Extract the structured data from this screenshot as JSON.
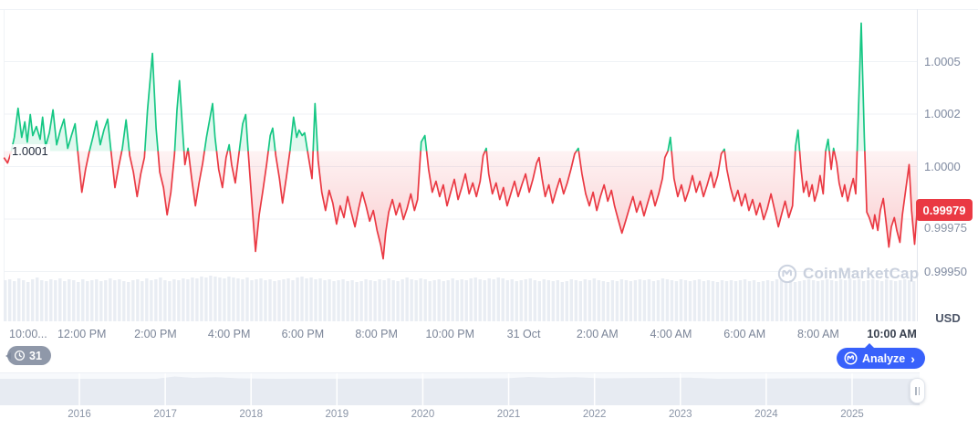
{
  "chart_data": {
    "type": "line",
    "unit": "USD",
    "open_threshold": {
      "price": 1.000074,
      "label": "1.0001"
    },
    "current": {
      "price": 0.99979,
      "label": "0.99979"
    },
    "y_axis": {
      "ticks": [
        {
          "price": 1.0005,
          "label": "1.0005",
          "hidden": false
        },
        {
          "price": 1.00025,
          "label": "1.0002",
          "hidden": false
        },
        {
          "price": 1.0,
          "label": "1.0000",
          "hidden": false
        },
        {
          "price": 0.99975,
          "label": "0.99975",
          "hidden": true
        },
        {
          "price": 0.9995,
          "label": "0.99950",
          "hidden": false
        }
      ],
      "range": [
        0.99945,
        1.00075
      ]
    },
    "x_axis": {
      "ticks": [
        {
          "t": 0,
          "label": "10:00...",
          "current": false
        },
        {
          "t": 120,
          "label": "12:00 PM",
          "current": false
        },
        {
          "t": 240,
          "label": "2:00 PM",
          "current": false
        },
        {
          "t": 360,
          "label": "4:00 PM",
          "current": false
        },
        {
          "t": 480,
          "label": "6:00 PM",
          "current": false
        },
        {
          "t": 600,
          "label": "8:00 PM",
          "current": false
        },
        {
          "t": 720,
          "label": "10:00 PM",
          "current": false
        },
        {
          "t": 840,
          "label": "31 Oct",
          "current": false
        },
        {
          "t": 960,
          "label": "2:00 AM",
          "current": false
        },
        {
          "t": 1080,
          "label": "4:00 AM",
          "current": false
        },
        {
          "t": 1200,
          "label": "6:00 AM",
          "current": false
        },
        {
          "t": 1320,
          "label": "8:00 AM",
          "current": false
        },
        {
          "t": 1440,
          "label": "10:00 AM",
          "current": true
        }
      ]
    },
    "points": [
      [
        -7,
        1.000043
      ],
      [
        -1,
        1.000017
      ],
      [
        4,
        1.000061
      ],
      [
        10,
        1.000139
      ],
      [
        16,
        1.000278
      ],
      [
        22,
        1.000139
      ],
      [
        27,
        1.000213
      ],
      [
        31,
        1.000117
      ],
      [
        36,
        1.000248
      ],
      [
        40,
        1.000148
      ],
      [
        46,
        1.000191
      ],
      [
        52,
        1.00013
      ],
      [
        56,
        1.000235
      ],
      [
        61,
        1.000096
      ],
      [
        67,
        1.000161
      ],
      [
        73,
        1.00027
      ],
      [
        79,
        1.000104
      ],
      [
        85,
        1.000174
      ],
      [
        91,
        1.000226
      ],
      [
        97,
        1.000087
      ],
      [
        103,
        1.000148
      ],
      [
        109,
        1.000204
      ],
      [
        114,
        1.000052
      ],
      [
        120,
        0.999878
      ],
      [
        126,
        0.999987
      ],
      [
        132,
        1.00007
      ],
      [
        138,
        1.000139
      ],
      [
        144,
        1.000217
      ],
      [
        150,
        1.000104
      ],
      [
        156,
        1.000174
      ],
      [
        162,
        1.000226
      ],
      [
        168,
        1.000061
      ],
      [
        174,
        0.9999
      ],
      [
        180,
        1.0
      ],
      [
        186,
        1.000087
      ],
      [
        192,
        1.000222
      ],
      [
        198,
        1.000052
      ],
      [
        204,
        0.999974
      ],
      [
        210,
        0.999857
      ],
      [
        216,
        0.999965
      ],
      [
        222,
        1.000043
      ],
      [
        227,
        1.00027
      ],
      [
        235,
        1.000539
      ],
      [
        241,
        1.000183
      ],
      [
        247,
        0.999974
      ],
      [
        253,
        0.9999
      ],
      [
        259,
        0.99977
      ],
      [
        265,
        0.999878
      ],
      [
        271,
        1.000061
      ],
      [
        275,
        1.00027
      ],
      [
        279,
        1.000409
      ],
      [
        284,
        1.000183
      ],
      [
        288,
        1.000009
      ],
      [
        293,
        1.000087
      ],
      [
        299,
        0.999943
      ],
      [
        305,
        0.999813
      ],
      [
        311,
        0.999922
      ],
      [
        317,
        1.000017
      ],
      [
        323,
        1.000139
      ],
      [
        329,
        1.000235
      ],
      [
        333,
        1.0003
      ],
      [
        337,
        1.000139
      ],
      [
        343,
        0.999987
      ],
      [
        349,
        0.9999
      ],
      [
        355,
        1.000043
      ],
      [
        360,
        1.000104
      ],
      [
        364,
        1.000009
      ],
      [
        370,
        0.999922
      ],
      [
        376,
        1.000061
      ],
      [
        382,
        1.000204
      ],
      [
        387,
        1.000248
      ],
      [
        391,
        1.000074
      ],
      [
        397,
        0.999835
      ],
      [
        403,
        0.999596
      ],
      [
        409,
        0.99977
      ],
      [
        415,
        0.999887
      ],
      [
        421,
        1.000009
      ],
      [
        427,
        1.000148
      ],
      [
        431,
        1.000183
      ],
      [
        436,
        1.000052
      ],
      [
        442,
        0.999943
      ],
      [
        447,
        0.999826
      ],
      [
        453,
        0.999943
      ],
      [
        459,
        1.000074
      ],
      [
        465,
        1.000235
      ],
      [
        470,
        1.000139
      ],
      [
        474,
        1.000174
      ],
      [
        479,
        1.000148
      ],
      [
        483,
        1.000161
      ],
      [
        489,
        1.000052
      ],
      [
        495,
        0.999943
      ],
      [
        500,
        1.0003
      ],
      [
        505,
        1.00003
      ],
      [
        511,
        0.999878
      ],
      [
        517,
        0.999791
      ],
      [
        523,
        0.999887
      ],
      [
        529,
        0.999826
      ],
      [
        535,
        0.999726
      ],
      [
        541,
        0.999813
      ],
      [
        547,
        0.999757
      ],
      [
        553,
        0.999857
      ],
      [
        559,
        0.999783
      ],
      [
        565,
        0.999713
      ],
      [
        571,
        0.9998
      ],
      [
        577,
        0.999878
      ],
      [
        583,
        0.999813
      ],
      [
        589,
        0.99974
      ],
      [
        595,
        0.999791
      ],
      [
        601,
        0.999696
      ],
      [
        607,
        0.999626
      ],
      [
        611,
        0.999561
      ],
      [
        615,
        0.999683
      ],
      [
        620,
        0.999783
      ],
      [
        626,
        0.999843
      ],
      [
        632,
        0.99977
      ],
      [
        638,
        0.999826
      ],
      [
        644,
        0.999748
      ],
      [
        650,
        0.9998
      ],
      [
        656,
        0.99987
      ],
      [
        662,
        0.999791
      ],
      [
        667,
        0.999843
      ],
      [
        673,
        1.000117
      ],
      [
        679,
        1.000148
      ],
      [
        685,
        0.999987
      ],
      [
        691,
        0.999878
      ],
      [
        697,
        0.99993
      ],
      [
        703,
        0.999857
      ],
      [
        709,
        0.999913
      ],
      [
        715,
        0.999813
      ],
      [
        721,
        0.999878
      ],
      [
        727,
        0.999939
      ],
      [
        733,
        0.999843
      ],
      [
        739,
        0.9999
      ],
      [
        745,
        0.999965
      ],
      [
        751,
        0.99987
      ],
      [
        757,
        0.999922
      ],
      [
        763,
        0.999857
      ],
      [
        769,
        0.99993
      ],
      [
        774,
        1.000052
      ],
      [
        779,
        1.000087
      ],
      [
        783,
        0.999965
      ],
      [
        789,
        0.99987
      ],
      [
        795,
        0.999922
      ],
      [
        801,
        0.999843
      ],
      [
        807,
        0.9999
      ],
      [
        813,
        0.999813
      ],
      [
        819,
        0.99987
      ],
      [
        825,
        0.99993
      ],
      [
        831,
        0.999857
      ],
      [
        837,
        0.999913
      ],
      [
        843,
        0.999965
      ],
      [
        849,
        0.999878
      ],
      [
        855,
        0.999939
      ],
      [
        861,
        1.000017
      ],
      [
        865,
        1.000043
      ],
      [
        870,
        0.999943
      ],
      [
        875,
        0.999857
      ],
      [
        881,
        0.999913
      ],
      [
        887,
        0.999826
      ],
      [
        893,
        0.999887
      ],
      [
        899,
        0.999943
      ],
      [
        905,
        0.99987
      ],
      [
        911,
        0.999922
      ],
      [
        917,
        0.999987
      ],
      [
        923,
        1.000061
      ],
      [
        929,
        1.000087
      ],
      [
        935,
        0.999965
      ],
      [
        941,
        0.99987
      ],
      [
        947,
        0.999813
      ],
      [
        953,
        0.999878
      ],
      [
        959,
        0.999791
      ],
      [
        965,
        0.999857
      ],
      [
        971,
        0.999913
      ],
      [
        977,
        0.999835
      ],
      [
        983,
        0.999887
      ],
      [
        988,
        0.999813
      ],
      [
        994,
        0.999748
      ],
      [
        1000,
        0.999683
      ],
      [
        1006,
        0.99974
      ],
      [
        1012,
        0.9998
      ],
      [
        1018,
        0.999857
      ],
      [
        1024,
        0.999783
      ],
      [
        1030,
        0.999835
      ],
      [
        1036,
        0.999765
      ],
      [
        1042,
        0.999826
      ],
      [
        1048,
        0.999887
      ],
      [
        1054,
        0.999813
      ],
      [
        1060,
        0.99987
      ],
      [
        1066,
        0.999943
      ],
      [
        1070,
        1.000043
      ],
      [
        1075,
        1.000074
      ],
      [
        1079,
        1.000139
      ],
      [
        1085,
        0.999943
      ],
      [
        1091,
        0.999857
      ],
      [
        1097,
        0.999913
      ],
      [
        1103,
        0.999835
      ],
      [
        1109,
        0.999887
      ],
      [
        1115,
        0.999957
      ],
      [
        1121,
        0.999878
      ],
      [
        1127,
        0.99993
      ],
      [
        1133,
        0.999857
      ],
      [
        1139,
        0.999913
      ],
      [
        1145,
        0.999974
      ],
      [
        1150,
        0.9999
      ],
      [
        1156,
        0.999957
      ],
      [
        1162,
        1.000061
      ],
      [
        1167,
        1.000083
      ],
      [
        1171,
        0.999987
      ],
      [
        1177,
        0.9999
      ],
      [
        1183,
        0.999835
      ],
      [
        1189,
        0.999887
      ],
      [
        1195,
        0.999813
      ],
      [
        1201,
        0.99987
      ],
      [
        1207,
        0.999791
      ],
      [
        1213,
        0.999843
      ],
      [
        1219,
        0.99977
      ],
      [
        1225,
        0.999826
      ],
      [
        1231,
        0.999748
      ],
      [
        1237,
        0.9998
      ],
      [
        1243,
        0.99987
      ],
      [
        1249,
        0.999791
      ],
      [
        1255,
        0.999713
      ],
      [
        1260,
        0.99977
      ],
      [
        1266,
        0.999835
      ],
      [
        1272,
        0.999757
      ],
      [
        1278,
        0.999813
      ],
      [
        1283,
        1.000096
      ],
      [
        1287,
        1.000174
      ],
      [
        1292,
        0.999987
      ],
      [
        1296,
        0.999878
      ],
      [
        1301,
        0.99993
      ],
      [
        1305,
        0.999857
      ],
      [
        1310,
        0.999913
      ],
      [
        1314,
        0.999835
      ],
      [
        1319,
        0.999887
      ],
      [
        1323,
        0.999957
      ],
      [
        1328,
        0.99987
      ],
      [
        1332,
        1.000074
      ],
      [
        1336,
        1.00013
      ],
      [
        1341,
        0.999987
      ],
      [
        1345,
        1.000087
      ],
      [
        1350,
        1.000017
      ],
      [
        1354,
        0.999922
      ],
      [
        1359,
        0.999857
      ],
      [
        1363,
        0.999913
      ],
      [
        1368,
        0.999835
      ],
      [
        1372,
        0.999887
      ],
      [
        1377,
        0.999943
      ],
      [
        1381,
        0.99987
      ],
      [
        1386,
        1.000313
      ],
      [
        1390,
        1.000683
      ],
      [
        1395,
        1.000139
      ],
      [
        1399,
        0.999783
      ],
      [
        1403,
        0.999757
      ],
      [
        1409,
        0.999704
      ],
      [
        1412,
        0.99977
      ],
      [
        1417,
        0.999696
      ],
      [
        1421,
        0.999791
      ],
      [
        1426,
        0.999848
      ],
      [
        1430,
        0.999748
      ],
      [
        1435,
        0.999617
      ],
      [
        1439,
        0.999713
      ],
      [
        1444,
        0.999757
      ],
      [
        1448,
        0.999696
      ],
      [
        1453,
        0.999639
      ],
      [
        1457,
        0.99977
      ],
      [
        1463,
        0.9999
      ],
      [
        1468,
        1.000009
      ],
      [
        1472,
        0.999791
      ],
      [
        1477,
        0.99963
      ],
      [
        1481,
        0.99979
      ]
    ],
    "volume_bars": [
      45,
      46,
      44,
      47,
      45,
      43,
      46,
      48,
      45,
      44,
      46,
      45,
      47,
      44,
      46,
      45,
      43,
      46,
      44,
      45,
      46,
      44,
      45,
      47,
      45,
      46,
      44,
      43,
      45,
      46,
      44,
      47,
      45,
      46,
      48,
      45,
      44,
      46,
      45,
      47,
      46,
      48,
      47,
      49,
      48,
      50,
      49,
      48,
      47,
      49,
      48,
      47,
      46,
      48,
      45,
      46,
      47,
      45,
      46,
      44,
      45,
      46,
      47,
      45,
      48,
      49,
      47,
      48,
      46,
      47,
      45,
      46,
      44,
      45,
      46,
      44,
      45,
      43,
      44,
      46,
      45,
      44,
      46,
      45,
      47,
      45,
      44,
      46,
      48,
      46,
      45,
      47,
      46,
      44,
      45,
      46,
      44,
      45,
      47,
      45,
      46,
      45,
      47,
      48,
      46,
      45,
      47,
      46,
      48,
      47,
      45,
      46,
      44,
      45,
      46,
      47,
      45,
      44,
      46,
      45,
      44,
      45,
      43,
      44,
      46,
      45,
      44,
      46,
      45,
      47,
      45,
      44,
      43,
      45,
      44,
      46,
      45,
      44,
      45,
      46,
      45,
      46,
      44,
      45,
      47,
      46,
      45,
      44,
      46,
      45,
      44,
      45,
      46,
      44,
      45,
      44,
      43,
      45,
      44,
      45,
      44,
      45,
      46,
      44,
      45,
      43,
      44,
      45,
      44,
      46,
      45,
      44,
      45,
      43,
      44,
      45,
      46,
      45,
      44,
      45,
      46,
      45,
      44,
      46,
      45,
      47,
      45,
      46,
      44,
      45,
      46,
      45,
      44,
      46,
      45,
      44,
      45,
      46,
      45,
      44
    ],
    "colors": {
      "up": "#16c784",
      "down": "#ea3943",
      "grid": "#eff2f6",
      "axis_text": "#7f8aa0",
      "volume_bar": "#e9edf3",
      "badge_bg": "#ea3943",
      "accent_blue": "#3861fb"
    },
    "navigator": {
      "years": [
        "2016",
        "2017",
        "2018",
        "2019",
        "2020",
        "2021",
        "2022",
        "2023",
        "2024",
        "2025"
      ],
      "profile": [
        [
          0,
          6
        ],
        [
          0.17,
          6
        ],
        [
          0.19,
          3.5
        ],
        [
          0.21,
          5
        ],
        [
          0.235,
          4.2
        ],
        [
          0.26,
          5.5
        ],
        [
          0.3,
          6
        ],
        [
          0.55,
          5.5
        ],
        [
          0.575,
          4
        ],
        [
          0.6,
          5
        ],
        [
          0.625,
          4.3
        ],
        [
          0.655,
          5.5
        ],
        [
          0.75,
          4.8
        ],
        [
          0.78,
          6
        ],
        [
          0.88,
          5.5
        ],
        [
          1,
          6
        ]
      ]
    }
  },
  "ui": {
    "unit_label": "USD",
    "open_label": "1.0001",
    "current_price_label": "0.99979",
    "hidden_tick_label": "0.99975",
    "history_count": "31",
    "analyze_label": "Analyze",
    "analyze_chevron": "›",
    "watermark_text": "CoinMarketCap"
  }
}
